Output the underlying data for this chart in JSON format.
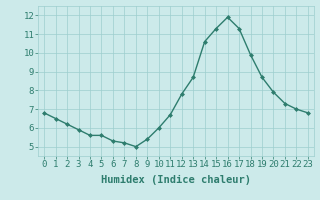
{
  "x": [
    0,
    1,
    2,
    3,
    4,
    5,
    6,
    7,
    8,
    9,
    10,
    11,
    12,
    13,
    14,
    15,
    16,
    17,
    18,
    19,
    20,
    21,
    22,
    23
  ],
  "y": [
    6.8,
    6.5,
    6.2,
    5.9,
    5.6,
    5.6,
    5.3,
    5.2,
    5.0,
    5.4,
    6.0,
    6.7,
    7.8,
    8.7,
    10.6,
    11.3,
    11.9,
    11.3,
    9.9,
    8.7,
    7.9,
    7.3,
    7.0,
    6.8
  ],
  "xlabel": "Humidex (Indice chaleur)",
  "ylim": [
    4.5,
    12.5
  ],
  "xlim": [
    -0.5,
    23.5
  ],
  "yticks": [
    5,
    6,
    7,
    8,
    9,
    10,
    11,
    12
  ],
  "xticks": [
    0,
    1,
    2,
    3,
    4,
    5,
    6,
    7,
    8,
    9,
    10,
    11,
    12,
    13,
    14,
    15,
    16,
    17,
    18,
    19,
    20,
    21,
    22,
    23
  ],
  "line_color": "#2e7d6e",
  "marker": "D",
  "marker_size": 2.0,
  "line_width": 1.0,
  "bg_color": "#cceaea",
  "grid_color": "#9ecece",
  "xlabel_fontsize": 7.5,
  "tick_fontsize": 6.5,
  "tick_color": "#2e7d6e"
}
